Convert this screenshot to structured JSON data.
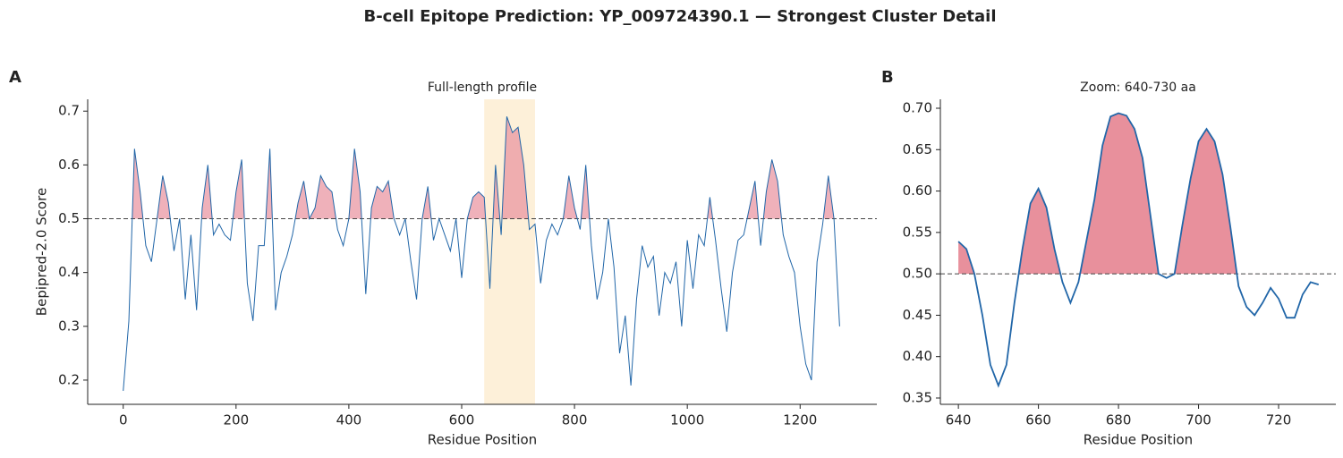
{
  "title": "B-cell Epitope Prediction: YP_009724390.1 — Strongest Cluster Detail",
  "chart_data": [
    {
      "type": "line",
      "panel": "A",
      "title": "Full-length profile",
      "x_label": "Residue Position",
      "y_label": "Bepipred-2.0 Score",
      "threshold": 0.5,
      "highlight": [
        640,
        730
      ],
      "highlight_color": "#fdf0d9",
      "fill_color": "#e8909c",
      "grid": false,
      "xlim": [
        -63,
        1336
      ],
      "ylim": [
        0.155,
        0.722
      ],
      "xticks": [
        0,
        200,
        400,
        600,
        800,
        1000,
        1200
      ],
      "yticks": [
        0.2,
        0.3,
        0.4,
        0.5,
        0.6,
        0.7
      ],
      "x": [
        0,
        10,
        20,
        30,
        40,
        50,
        60,
        70,
        80,
        90,
        100,
        110,
        120,
        130,
        140,
        150,
        160,
        170,
        180,
        190,
        200,
        210,
        220,
        230,
        240,
        250,
        260,
        270,
        280,
        290,
        300,
        310,
        320,
        330,
        340,
        350,
        360,
        370,
        380,
        390,
        400,
        410,
        420,
        430,
        440,
        450,
        460,
        470,
        480,
        490,
        500,
        510,
        520,
        530,
        540,
        550,
        560,
        570,
        580,
        590,
        600,
        610,
        620,
        630,
        640,
        650,
        660,
        670,
        680,
        690,
        700,
        710,
        720,
        730,
        740,
        750,
        760,
        770,
        780,
        790,
        800,
        810,
        820,
        830,
        840,
        850,
        860,
        870,
        880,
        890,
        900,
        910,
        920,
        930,
        940,
        950,
        960,
        970,
        980,
        990,
        1000,
        1010,
        1020,
        1030,
        1040,
        1050,
        1060,
        1070,
        1080,
        1090,
        1100,
        1110,
        1120,
        1130,
        1140,
        1150,
        1160,
        1170,
        1180,
        1190,
        1200,
        1210,
        1220,
        1230,
        1240,
        1250,
        1260,
        1270
      ],
      "series": [
        {
          "name": "Score",
          "color": "#2166a8",
          "values": [
            0.18,
            0.31,
            0.63,
            0.55,
            0.45,
            0.42,
            0.5,
            0.58,
            0.53,
            0.44,
            0.5,
            0.35,
            0.47,
            0.33,
            0.52,
            0.6,
            0.47,
            0.49,
            0.47,
            0.46,
            0.55,
            0.61,
            0.38,
            0.31,
            0.45,
            0.45,
            0.63,
            0.33,
            0.4,
            0.43,
            0.47,
            0.53,
            0.57,
            0.5,
            0.52,
            0.58,
            0.56,
            0.55,
            0.48,
            0.45,
            0.5,
            0.63,
            0.55,
            0.36,
            0.52,
            0.56,
            0.55,
            0.57,
            0.5,
            0.47,
            0.5,
            0.42,
            0.35,
            0.5,
            0.56,
            0.46,
            0.5,
            0.47,
            0.44,
            0.5,
            0.39,
            0.5,
            0.54,
            0.55,
            0.54,
            0.37,
            0.6,
            0.47,
            0.69,
            0.66,
            0.67,
            0.6,
            0.48,
            0.49,
            0.38,
            0.46,
            0.49,
            0.47,
            0.5,
            0.58,
            0.52,
            0.48,
            0.6,
            0.45,
            0.35,
            0.4,
            0.5,
            0.41,
            0.25,
            0.32,
            0.19,
            0.35,
            0.45,
            0.41,
            0.43,
            0.32,
            0.4,
            0.38,
            0.42,
            0.3,
            0.46,
            0.37,
            0.47,
            0.45,
            0.54,
            0.46,
            0.37,
            0.29,
            0.4,
            0.46,
            0.47,
            0.52,
            0.57,
            0.45,
            0.55,
            0.61,
            0.57,
            0.47,
            0.43,
            0.4,
            0.3,
            0.23,
            0.2,
            0.42,
            0.49,
            0.58,
            0.5,
            0.3
          ]
        }
      ]
    },
    {
      "type": "line",
      "panel": "B",
      "title": "Zoom: 640-730 aa",
      "x_label": "Residue Position",
      "threshold": 0.5,
      "fill_color": "#e8909c",
      "grid": false,
      "xlim": [
        635.5,
        734.3
      ],
      "ylim": [
        0.3424,
        0.7108
      ],
      "xticks": [
        640,
        660,
        680,
        700,
        720
      ],
      "yticks": [
        0.35,
        {
          "value": 0.4,
          "label": "0.40"
        },
        0.45,
        {
          "value": 0.5,
          "label": "0.50"
        },
        0.55,
        {
          "value": 0.6,
          "label": "0.60"
        },
        0.65,
        {
          "value": 0.7,
          "label": "0.70"
        }
      ],
      "x": [
        640,
        642,
        644,
        646,
        648,
        650,
        652,
        654,
        656,
        658,
        660,
        662,
        664,
        666,
        668,
        670,
        672,
        674,
        676,
        678,
        680,
        682,
        684,
        686,
        688,
        690,
        692,
        694,
        696,
        698,
        700,
        702,
        704,
        706,
        708,
        710,
        712,
        714,
        716,
        718,
        720,
        722,
        724,
        726,
        728,
        730
      ],
      "series": [
        {
          "name": "Score",
          "color": "#2166a8",
          "values": [
            0.539,
            0.53,
            0.5,
            0.45,
            0.39,
            0.365,
            0.39,
            0.465,
            0.53,
            0.585,
            0.603,
            0.58,
            0.53,
            0.49,
            0.465,
            0.49,
            0.54,
            0.59,
            0.655,
            0.69,
            0.694,
            0.691,
            0.675,
            0.64,
            0.57,
            0.5,
            0.495,
            0.5,
            0.56,
            0.615,
            0.66,
            0.675,
            0.66,
            0.62,
            0.555,
            0.485,
            0.46,
            0.45,
            0.465,
            0.483,
            0.47,
            0.447,
            0.447,
            0.475,
            0.49,
            0.487
          ]
        }
      ]
    }
  ]
}
